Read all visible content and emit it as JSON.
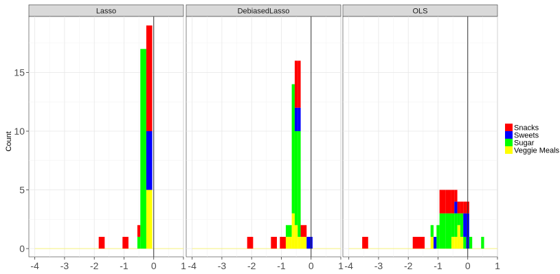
{
  "chart_data": {
    "type": "bar",
    "subtype": "faceted stacked histogram",
    "ylabel": "Count",
    "xlabel": "",
    "xlim": [
      -4.2,
      1.0
    ],
    "ylim": [
      0,
      19.5
    ],
    "x_ticks": [
      -4,
      -3,
      -2,
      -1,
      0,
      1
    ],
    "y_ticks": [
      0,
      5,
      10,
      15
    ],
    "vline_x": 0,
    "legend": {
      "placement": "right",
      "entries": [
        {
          "label": "Snacks",
          "color": "#ff0000"
        },
        {
          "label": "Sweets",
          "color": "#0000ff"
        },
        {
          "label": "Sugar",
          "color": "#00ff00"
        },
        {
          "label": "Veggie Meals",
          "color": "#ffff00"
        }
      ]
    },
    "panels": [
      {
        "title": "Lasso",
        "bins": [
          {
            "x0": -1.85,
            "x1": -1.65,
            "Veggie Meals": 0,
            "Sugar": 0,
            "Sweets": 0,
            "Snacks": 1
          },
          {
            "x0": -1.05,
            "x1": -0.85,
            "Veggie Meals": 0,
            "Sugar": 0,
            "Sweets": 0,
            "Snacks": 1
          },
          {
            "x0": -0.55,
            "x1": -0.45,
            "Veggie Meals": 0,
            "Sugar": 1,
            "Sweets": 0,
            "Snacks": 1
          },
          {
            "x0": -0.45,
            "x1": -0.25,
            "Veggie Meals": 0,
            "Sugar": 17,
            "Sweets": 0,
            "Snacks": 0
          },
          {
            "x0": -0.25,
            "x1": -0.05,
            "Veggie Meals": 5,
            "Sugar": 0,
            "Sweets": 5,
            "Snacks": 9
          }
        ]
      },
      {
        "title": "DebiasedLasso",
        "bins": [
          {
            "x0": -2.15,
            "x1": -1.95,
            "Veggie Meals": 0,
            "Sugar": 0,
            "Sweets": 0,
            "Snacks": 1
          },
          {
            "x0": -1.35,
            "x1": -1.15,
            "Veggie Meals": 0,
            "Sugar": 0,
            "Sweets": 0,
            "Snacks": 1
          },
          {
            "x0": -1.05,
            "x1": -0.85,
            "Veggie Meals": 0,
            "Sugar": 0,
            "Sweets": 0,
            "Snacks": 1
          },
          {
            "x0": -0.85,
            "x1": -0.65,
            "Veggie Meals": 1,
            "Sugar": 1,
            "Sweets": 0,
            "Snacks": 0
          },
          {
            "x0": -0.65,
            "x1": -0.55,
            "Veggie Meals": 3,
            "Sugar": 11,
            "Sweets": 0,
            "Snacks": 0
          },
          {
            "x0": -0.55,
            "x1": -0.45,
            "Veggie Meals": 2,
            "Sugar": 8,
            "Sweets": 2,
            "Snacks": 4
          },
          {
            "x0": -0.45,
            "x1": -0.35,
            "Veggie Meals": 1,
            "Sugar": 9,
            "Sweets": 2,
            "Snacks": 4
          },
          {
            "x0": -0.35,
            "x1": -0.15,
            "Veggie Meals": 1,
            "Sugar": 0,
            "Sweets": 0,
            "Snacks": 1
          },
          {
            "x0": -0.15,
            "x1": 0.05,
            "Veggie Meals": 0,
            "Sugar": 0,
            "Sweets": 1,
            "Snacks": 0
          }
        ]
      },
      {
        "title": "OLS",
        "bins": [
          {
            "x0": -3.55,
            "x1": -3.35,
            "Veggie Meals": 0,
            "Sugar": 0,
            "Sweets": 0,
            "Snacks": 1
          },
          {
            "x0": -1.85,
            "x1": -1.45,
            "Veggie Meals": 0,
            "Sugar": 0,
            "Sweets": 0,
            "Snacks": 1
          },
          {
            "x0": -1.25,
            "x1": -1.15,
            "Veggie Meals": 1,
            "Sugar": 1,
            "Sweets": 0,
            "Snacks": 0
          },
          {
            "x0": -1.15,
            "x1": -1.05,
            "Veggie Meals": 0,
            "Sugar": 0,
            "Sweets": 1,
            "Snacks": 0
          },
          {
            "x0": -1.05,
            "x1": -0.95,
            "Veggie Meals": 0,
            "Sugar": 2,
            "Sweets": 0,
            "Snacks": 0
          },
          {
            "x0": -0.95,
            "x1": -0.75,
            "Veggie Meals": 0,
            "Sugar": 3,
            "Sweets": 0,
            "Snacks": 2
          },
          {
            "x0": -0.75,
            "x1": -0.55,
            "Veggie Meals": 0,
            "Sugar": 3,
            "Sweets": 0,
            "Snacks": 2
          },
          {
            "x0": -0.55,
            "x1": -0.45,
            "Veggie Meals": 1,
            "Sugar": 2,
            "Sweets": 0,
            "Snacks": 2
          },
          {
            "x0": -0.45,
            "x1": -0.35,
            "Veggie Meals": 1,
            "Sugar": 2,
            "Sweets": 1,
            "Snacks": 1
          },
          {
            "x0": -0.35,
            "x1": -0.25,
            "Veggie Meals": 2,
            "Sugar": 1,
            "Sweets": 0,
            "Snacks": 1
          },
          {
            "x0": -0.25,
            "x1": -0.15,
            "Veggie Meals": 1,
            "Sugar": 2,
            "Sweets": 0,
            "Snacks": 1
          },
          {
            "x0": -0.15,
            "x1": -0.05,
            "Veggie Meals": 0,
            "Sugar": 1,
            "Sweets": 2,
            "Snacks": 1
          },
          {
            "x0": -0.05,
            "x1": 0.05,
            "Veggie Meals": 0,
            "Sugar": 0,
            "Sweets": 3,
            "Snacks": 1
          },
          {
            "x0": 0.05,
            "x1": 0.15,
            "Veggie Meals": 0,
            "Sugar": 1,
            "Sweets": 0,
            "Snacks": 0
          },
          {
            "x0": 0.45,
            "x1": 0.55,
            "Veggie Meals": 0,
            "Sugar": 1,
            "Sweets": 0,
            "Snacks": 0
          }
        ]
      }
    ]
  }
}
